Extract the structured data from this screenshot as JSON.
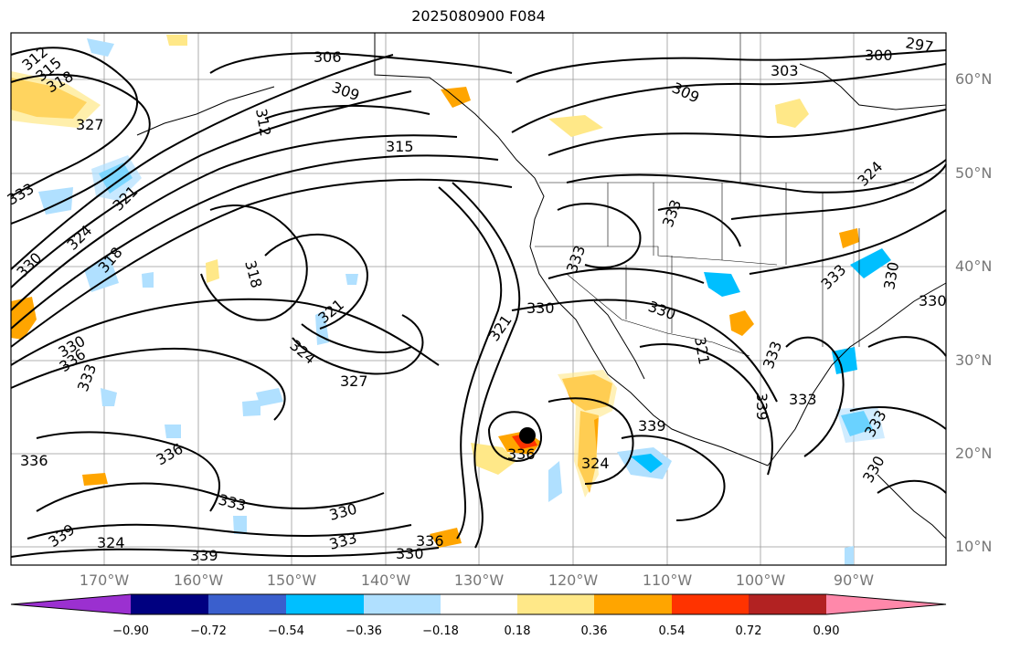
{
  "title": "2025080900 F084",
  "lat_labels": [
    "60°N",
    "50°N",
    "40°N",
    "30°N",
    "20°N",
    "10°N"
  ],
  "lon_labels": [
    "170°W",
    "160°W",
    "150°W",
    "140°W",
    "130°W",
    "120°W",
    "110°W",
    "100°W",
    "90°W"
  ],
  "contour_labels": [
    "312",
    "315",
    "318",
    "327",
    "333",
    "324",
    "321",
    "330",
    "318",
    "306",
    "309",
    "312",
    "315",
    "303",
    "300",
    "297",
    "309",
    "318",
    "321",
    "324",
    "327",
    "330",
    "333",
    "336",
    "339",
    "324",
    "321",
    "336",
    "336",
    "333",
    "339",
    "324",
    "339",
    "330",
    "333",
    "330",
    "336",
    "333",
    "330",
    "333",
    "339",
    "336",
    "333",
    "330",
    "333",
    "330",
    "324",
    "333",
    "330",
    "330",
    "333",
    "321"
  ],
  "colorbar": {
    "ticks": [
      "−0.90",
      "−0.72",
      "−0.54",
      "−0.36",
      "−0.18",
      "0.18",
      "0.36",
      "0.54",
      "0.72",
      "0.90"
    ],
    "colors": [
      "#9b30d0",
      "#000080",
      "#3a5fcd",
      "#00bfff",
      "#b0e0ff",
      "#ffffff",
      "#ffe888",
      "#ffa500",
      "#ff3300",
      "#b22222",
      "#ff88aa"
    ]
  },
  "marker": "black-dot"
}
